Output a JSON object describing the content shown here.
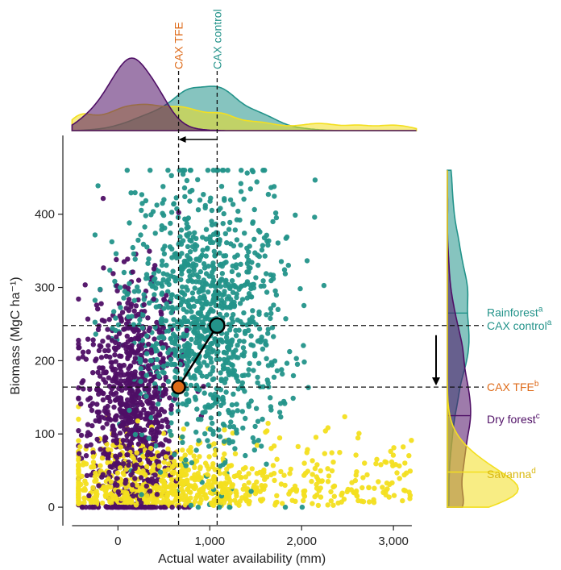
{
  "chart_data": {
    "type": "scatter",
    "title": "",
    "xlabel": "Actual water availability (mm)",
    "ylabel": "Biomass (MgC ha⁻¹)",
    "xlim": [
      -600,
      3350
    ],
    "ylim": [
      -12,
      480
    ],
    "x_ticks": [
      0,
      1000,
      2000,
      3000
    ],
    "x_tick_labels": [
      "0",
      "1,000",
      "2,000",
      "3,000"
    ],
    "y_ticks": [
      0,
      100,
      200,
      300,
      400
    ],
    "y_tick_labels": [
      "0",
      "100",
      "200",
      "300",
      "400"
    ],
    "grid": false,
    "colors": {
      "rainforest": "#23938a",
      "dry_forest": "#4f0f66",
      "savanna": "#f3df1f",
      "cax_tfe": "#de6a18",
      "arrow": "#000000"
    },
    "series": [
      {
        "key": "dry_forest",
        "name": "Dry forest",
        "sup": "c",
        "n_points": 900,
        "x_mean": 150,
        "x_sd": 260,
        "x_min": -430,
        "x_max": 1200,
        "y_mean": 130,
        "y_sd": 85,
        "y_min": 0,
        "y_max": 450,
        "mean_biomass": 125,
        "x_density_peak": 50
      },
      {
        "key": "rainforest",
        "name": "Rainforest",
        "sup": "a",
        "n_points": 1100,
        "x_mean": 950,
        "x_sd": 450,
        "x_min": -250,
        "x_max": 3300,
        "y_mean": 255,
        "y_sd": 95,
        "y_min": 0,
        "y_max": 460,
        "mean_biomass": 265,
        "x_density_peak": 950
      },
      {
        "key": "savanna",
        "name": "Savanna",
        "sup": "d",
        "n_points": 850,
        "x_mean": 380,
        "x_sd": 520,
        "x_min": -430,
        "x_max": 3200,
        "y_mean": 35,
        "y_sd": 45,
        "y_min": 0,
        "y_max": 430,
        "mean_biomass": 48,
        "x_density_peak": 200
      }
    ],
    "reference_points": [
      {
        "key": "cax_control",
        "name": "CAX control",
        "sup": "a",
        "x": 1080,
        "y": 248,
        "fill": "#23938a"
      },
      {
        "key": "cax_tfe",
        "name": "CAX TFE",
        "sup": "b",
        "x": 660,
        "y": 164,
        "fill": "#de6a18"
      }
    ],
    "vertical_lines": [
      {
        "label": "CAX TFE",
        "x": 660,
        "color": "#de6a18"
      },
      {
        "label": "CAX control",
        "x": 1080,
        "color": "#23938a"
      }
    ],
    "horizontal_lines": [
      {
        "label": "CAX control",
        "sup": "a",
        "y": 248,
        "color": "#23938a"
      },
      {
        "label": "CAX TFE",
        "sup": "b",
        "y": 164,
        "color": "#de6a18"
      }
    ],
    "right_labels": [
      {
        "text": "Rainforest",
        "sup": "a",
        "color": "#23938a",
        "y": 266
      },
      {
        "text": "CAX control",
        "sup": "a",
        "color": "#23938a",
        "y": 248
      },
      {
        "text": "CAX TFE",
        "sup": "b",
        "color": "#de6a18",
        "y": 164
      },
      {
        "text": "Dry forest",
        "sup": "c",
        "color": "#4f0f66",
        "y": 120
      },
      {
        "text": "Savanna",
        "sup": "d",
        "color": "#d9b80f",
        "y": 45
      }
    ]
  }
}
